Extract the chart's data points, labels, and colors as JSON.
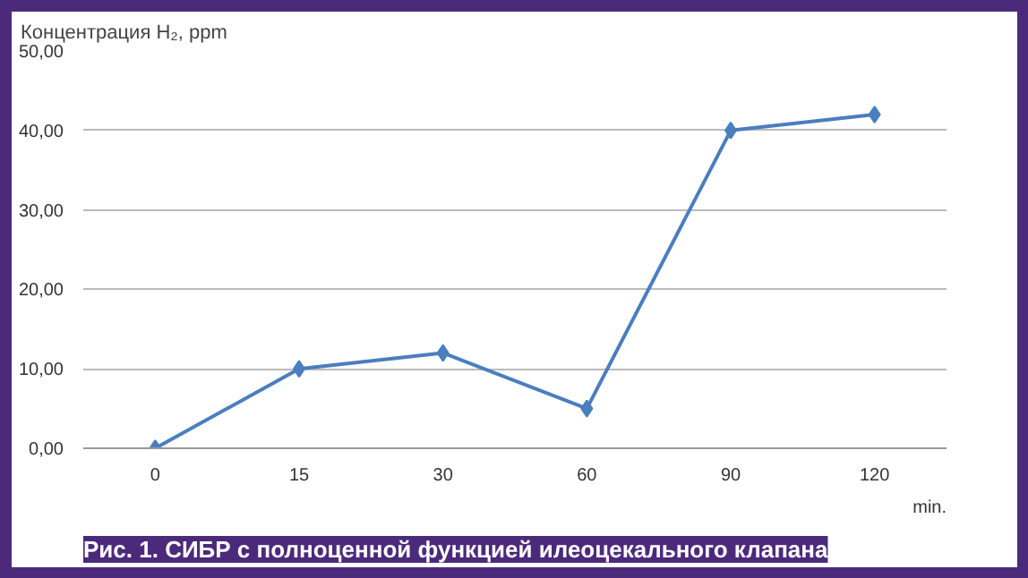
{
  "chart_data": {
    "type": "line",
    "ylabel": "Концентрация H₂, ppm",
    "xlabel": "min.",
    "categories": [
      "0",
      "15",
      "30",
      "60",
      "90",
      "120"
    ],
    "series": [
      {
        "color": "#4a7ebf",
        "values": [
          0,
          10,
          12,
          5,
          40,
          42
        ]
      }
    ],
    "ylim": [
      0,
      50
    ],
    "yticks": [
      {
        "value": 0,
        "label": "0,00"
      },
      {
        "value": 10,
        "label": "10,00"
      },
      {
        "value": 20,
        "label": "20,00"
      },
      {
        "value": 30,
        "label": "30,00"
      },
      {
        "value": 40,
        "label": "40,00"
      },
      {
        "value": 50,
        "label": "50,00"
      }
    ],
    "grid": "y",
    "marker": "diamond",
    "line_style": "solid",
    "annotations": [
      "Рис. 1. СИБР с полноценной функцией илеоцекального клапана"
    ]
  }
}
